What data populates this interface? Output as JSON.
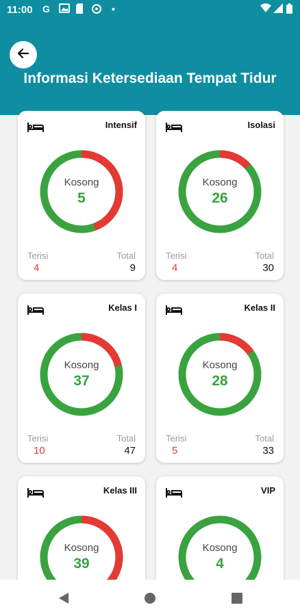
{
  "status_bar": {
    "time": "11:00",
    "notification_icons": [
      "google-icon",
      "image-icon",
      "sim-card-icon",
      "data-saver-icon",
      "dot-icon"
    ],
    "system_icons": [
      "wifi-icon",
      "signal-icon",
      "battery-icon"
    ]
  },
  "header": {
    "title": "Informasi Ketersediaan Tempat Tidur",
    "back_icon": "arrow-left-icon",
    "background": "#0f8ea1"
  },
  "colors": {
    "empty": "#3aa33f",
    "filled": "#e53935"
  },
  "rooms": [
    {
      "name": "Intensif",
      "kosong_label": "Kosong",
      "kosong": 5,
      "terisi_label": "Terisi",
      "terisi": 4,
      "total_label": "Total",
      "total": 9
    },
    {
      "name": "Isolasi",
      "kosong_label": "Kosong",
      "kosong": 26,
      "terisi_label": "Terisi",
      "terisi": 4,
      "total_label": "Total",
      "total": 30
    },
    {
      "name": "Kelas I",
      "kosong_label": "Kosong",
      "kosong": 37,
      "terisi_label": "Terisi",
      "terisi": 10,
      "total_label": "Total",
      "total": 47
    },
    {
      "name": "Kelas II",
      "kosong_label": "Kosong",
      "kosong": 28,
      "terisi_label": "Terisi",
      "terisi": 5,
      "total_label": "Total",
      "total": 33
    },
    {
      "name": "Kelas III",
      "kosong_label": "Kosong",
      "kosong": 39,
      "terisi_label": "",
      "terisi": null,
      "total_label": "",
      "total": null
    },
    {
      "name": "VIP",
      "kosong_label": "Kosong",
      "kosong": 4,
      "terisi_label": "",
      "terisi": null,
      "total_label": "",
      "total": null
    }
  ],
  "navigation_bar": [
    "back-triangle-icon",
    "home-circle-icon",
    "recents-square-icon"
  ]
}
